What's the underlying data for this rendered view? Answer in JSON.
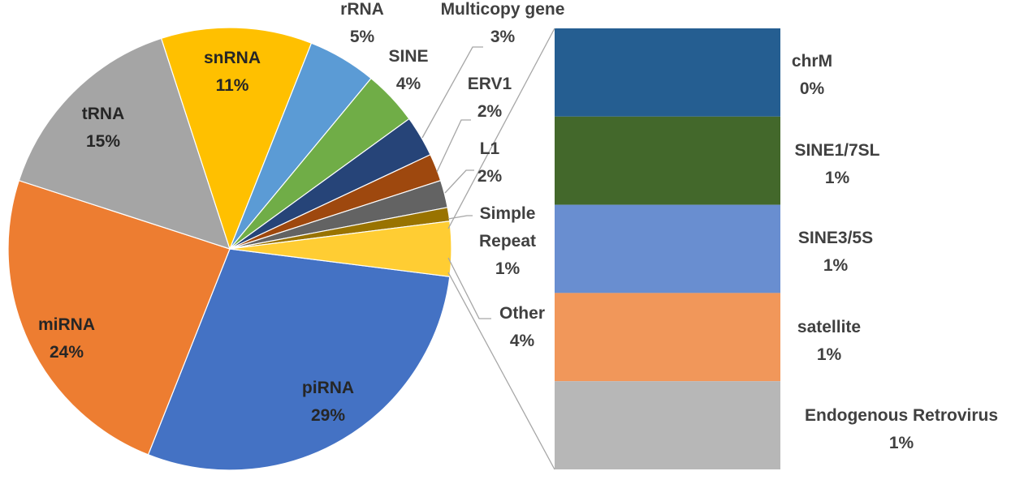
{
  "chart_data": {
    "type": "pie",
    "subtype": "bar-of-pie",
    "slices": [
      {
        "name": "piRNA",
        "value": 29,
        "label": "29%",
        "color": "#4472c4"
      },
      {
        "name": "miRNA",
        "value": 24,
        "label": "24%",
        "color": "#ed7d31"
      },
      {
        "name": "tRNA",
        "value": 15,
        "label": "15%",
        "color": "#a5a5a5"
      },
      {
        "name": "snRNA",
        "value": 11,
        "label": "11%",
        "color": "#ffc000"
      },
      {
        "name": "rRNA",
        "value": 5,
        "label": "5%",
        "color": "#5b9bd5"
      },
      {
        "name": "SINE",
        "value": 4,
        "label": "4%",
        "color": "#70ad47"
      },
      {
        "name": "Multicopy gene",
        "value": 3,
        "label": "3%",
        "color": "#264478"
      },
      {
        "name": "ERV1",
        "value": 2,
        "label": "2%",
        "color": "#9e480e"
      },
      {
        "name": "L1",
        "value": 2,
        "label": "2%",
        "color": "#636363"
      },
      {
        "name": "Simple Repeat",
        "value": 1,
        "label": "1%",
        "color": "#997300"
      },
      {
        "name": "Other",
        "value": 4,
        "label": "4%",
        "color": "#ffcd33"
      }
    ],
    "other_breakdown": [
      {
        "name": "chrM",
        "value": 0,
        "label": "0%",
        "color": "#255e91"
      },
      {
        "name": "SINE1/7SL",
        "value": 1,
        "label": "1%",
        "color": "#43682b"
      },
      {
        "name": "SINE3/5S",
        "value": 1,
        "label": "1%",
        "color": "#698ed0"
      },
      {
        "name": "satellite",
        "value": 1,
        "label": "1%",
        "color": "#f1975a"
      },
      {
        "name": "Endogenous Retrovirus",
        "value": 1,
        "label": "1%",
        "color": "#b7b7b7"
      }
    ]
  }
}
